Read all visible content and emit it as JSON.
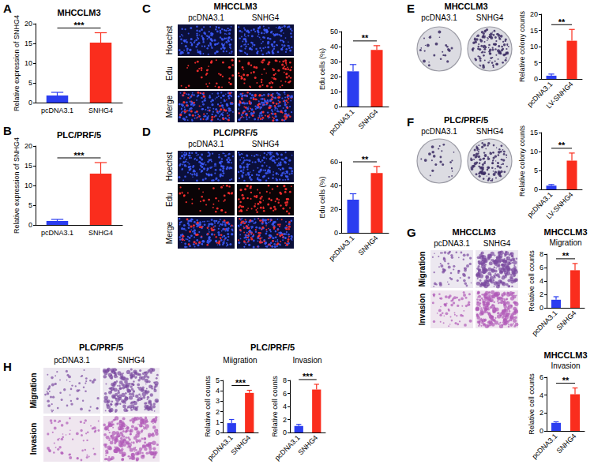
{
  "chart_data": [
    {
      "type": "bar",
      "panel_label": "A",
      "title": "MHCCLM3",
      "ylabel": "Relative expression of SNHG4",
      "categories": [
        "pcDNA3.1",
        "SNHG4"
      ],
      "values": [
        1.8,
        15.2
      ],
      "errors": [
        0.8,
        2.5
      ],
      "colors": [
        "#2b3df0",
        "#fa2d1d"
      ],
      "ylim": [
        0,
        20
      ],
      "yticks": [
        0,
        5,
        10,
        15,
        20
      ],
      "annotation": "***"
    },
    {
      "type": "bar",
      "panel_label": "B",
      "title": "PLC/PRF/5",
      "ylabel": "Relative expression of SNHG4",
      "categories": [
        "pcDNA3.1",
        "SNHG4"
      ],
      "values": [
        1.0,
        13.0
      ],
      "errors": [
        0.4,
        2.8
      ],
      "colors": [
        "#2b3df0",
        "#fa2d1d"
      ],
      "ylim": [
        0,
        20
      ],
      "yticks": [
        0,
        5,
        10,
        15,
        20
      ],
      "annotation": "***"
    },
    {
      "type": "bar",
      "ylabel": "Edu cells (%)",
      "categories": [
        "pcDNA3.1",
        "SNHG4"
      ],
      "values": [
        23.5,
        37.8
      ],
      "errors": [
        4.5,
        2.8
      ],
      "colors": [
        "#2b3df0",
        "#fa2d1d"
      ],
      "ylim": [
        0,
        50
      ],
      "yticks": [
        0,
        10,
        20,
        30,
        40,
        50
      ],
      "annotation": "**"
    },
    {
      "type": "bar",
      "ylabel": "Edu cells (%)",
      "categories": [
        "pcDNA3.1",
        "SNHG4"
      ],
      "values": [
        28,
        50.5
      ],
      "errors": [
        5,
        5.5
      ],
      "colors": [
        "#2b3df0",
        "#fa2d1d"
      ],
      "ylim": [
        0,
        60
      ],
      "yticks": [
        0,
        20,
        40,
        60
      ],
      "annotation": "**"
    },
    {
      "type": "bar",
      "ylabel": "Relative colony counts",
      "categories": [
        "pcDNA3.1",
        "LV-SNHG4"
      ],
      "values": [
        1.0,
        11.8
      ],
      "errors": [
        0.5,
        3.5
      ],
      "colors": [
        "#2b3df0",
        "#fa2d1d"
      ],
      "ylim": [
        0,
        20
      ],
      "yticks": [
        0,
        5,
        10,
        15,
        20
      ],
      "annotation": "**"
    },
    {
      "type": "bar",
      "ylabel": "Relative colony counts",
      "categories": [
        "pcDNA3.1",
        "LV-SNHG4"
      ],
      "values": [
        1.0,
        7.6
      ],
      "errors": [
        0.3,
        2.0
      ],
      "colors": [
        "#2b3df0",
        "#fa2d1d"
      ],
      "ylim": [
        0,
        15
      ],
      "yticks": [
        0,
        5,
        10,
        15
      ],
      "annotation": "**"
    },
    {
      "type": "bar",
      "title": "MHCCLM3",
      "subtitle": "Migration",
      "ylabel": "Relative cell counts",
      "categories": [
        "pcDNA3.1",
        "SNHG4"
      ],
      "values": [
        1.2,
        5.6
      ],
      "errors": [
        0.45,
        1.0
      ],
      "colors": [
        "#2b3df0",
        "#fa2d1d"
      ],
      "ylim": [
        0,
        8
      ],
      "yticks": [
        0,
        2,
        4,
        6,
        8
      ],
      "annotation": "**"
    },
    {
      "type": "bar",
      "title": "PLC/PRF/5",
      "subtitle": "Miigration",
      "ylabel": "Relative cell counts",
      "categories": [
        "pcDNA3.1",
        "SNHG4"
      ],
      "values": [
        0.9,
        3.8
      ],
      "errors": [
        0.35,
        0.25
      ],
      "colors": [
        "#2b3df0",
        "#fa2d1d"
      ],
      "ylim": [
        0,
        5
      ],
      "yticks": [
        0,
        1,
        2,
        3,
        4,
        5
      ],
      "annotation": "***"
    },
    {
      "type": "bar",
      "subtitle": "Invasion",
      "ylabel": "Relative cell counts",
      "categories": [
        "pcDNA3.1",
        "SNHG4"
      ],
      "values": [
        1.0,
        6.6
      ],
      "errors": [
        0.25,
        0.8
      ],
      "colors": [
        "#2b3df0",
        "#fa2d1d"
      ],
      "ylim": [
        0,
        8
      ],
      "yticks": [
        0,
        2,
        4,
        6,
        8
      ],
      "annotation": "***"
    },
    {
      "type": "bar",
      "title": "MHCCLM3",
      "subtitle": "Invasion",
      "ylabel": "Relative cell counts",
      "categories": [
        "pcDNA3.1",
        "SNHG4"
      ],
      "values": [
        0.9,
        4.1
      ],
      "errors": [
        0.12,
        0.7
      ],
      "colors": [
        "#2b3df0",
        "#fa2d1d"
      ],
      "ylim": [
        0,
        6
      ],
      "yticks": [
        0,
        2,
        4,
        6
      ],
      "annotation": "**"
    }
  ],
  "image_panels": [
    {
      "panel_label": "C",
      "title": "MHCCLM3",
      "columns": [
        "pcDNA3.1",
        "SNHG4"
      ],
      "rows": [
        "Hoechst",
        "Edu",
        "Merge"
      ]
    },
    {
      "panel_label": "D",
      "title": "PLC/PRF/5",
      "columns": [
        "pcDNA3.1",
        "SNHG4"
      ],
      "rows": [
        "Hoechst",
        "Edu",
        "Merge"
      ]
    },
    {
      "panel_label": "E",
      "title": "MHCCLM3",
      "columns": [
        "pcDNA3.1",
        "SNHG4"
      ]
    },
    {
      "panel_label": "F",
      "title": "PLC/PRF/5",
      "columns": [
        "pcDNA3.1",
        "SNHG4"
      ]
    },
    {
      "panel_label": "G",
      "title": "MHCCLM3",
      "columns": [
        "pcDNA3.1",
        "SNHG4"
      ],
      "rows": [
        "Migration",
        "Invasion"
      ]
    },
    {
      "panel_label": "H",
      "title": "PLC/PRF/5",
      "columns": [
        "pcDNA3.1",
        "SNHG4"
      ],
      "rows": [
        "Migration",
        "Invasion"
      ]
    }
  ]
}
